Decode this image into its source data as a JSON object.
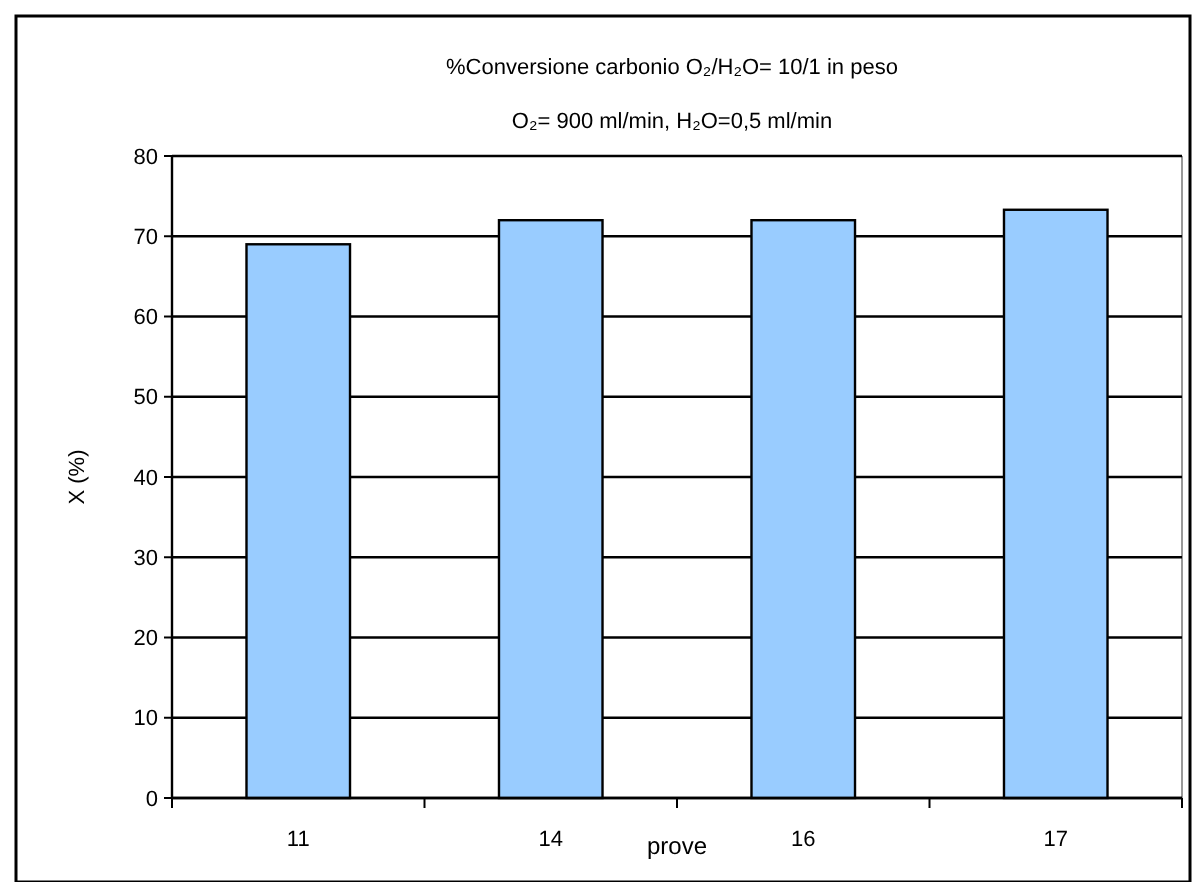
{
  "chart_data": {
    "type": "bar",
    "title": "%Conversione carbonio O₂/H₂O= 10/1 in peso",
    "subtitle": "O₂= 900 ml/min, H₂O=0,5 ml/min",
    "xlabel": "prove",
    "ylabel": "X (%)",
    "categories": [
      "11",
      "14",
      "16",
      "17"
    ],
    "values": [
      69,
      72,
      72,
      73.3
    ],
    "color": "#99ccff",
    "ylim": [
      0,
      80
    ],
    "yticks": [
      0,
      10,
      20,
      30,
      40,
      50,
      60,
      70,
      80
    ],
    "grid": "y"
  }
}
